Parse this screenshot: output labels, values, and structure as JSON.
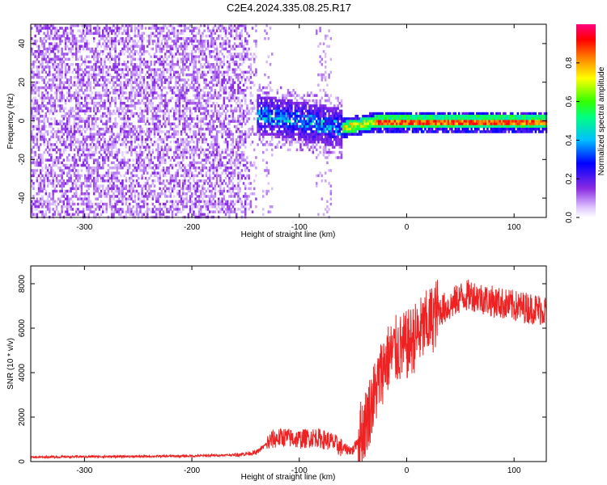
{
  "title": "C2E4.2024.335.08.25.R17",
  "colors": {
    "snr_line": "#ee2222",
    "spectrogram_low": "#8a2be2",
    "axis": "#000000"
  },
  "chart_data": [
    {
      "type": "heatmap",
      "xlabel": "Height of straight line (km)",
      "ylabel": "Frequency (Hz)",
      "xlim": [
        -350,
        130
      ],
      "ylim": [
        -50,
        50
      ],
      "xticks": [
        -300,
        -200,
        -100,
        0,
        100
      ],
      "yticks": [
        -40,
        -20,
        0,
        20,
        40
      ],
      "colorbar": {
        "label": "Normalized spectral amplitude",
        "range": [
          0.0,
          1.0
        ],
        "ticks": [
          0.0,
          0.2,
          0.4,
          0.6,
          0.8
        ],
        "colormap": "rainbow"
      },
      "features": [
        {
          "x_range": [
            -350,
            -140
          ],
          "freq_range": [
            -50,
            50
          ],
          "level": "noise, ~0.0-0.1"
        },
        {
          "x_range": [
            -150,
            -60
          ],
          "freq_center": 3,
          "freq_spread": 15,
          "level": "~0.1-0.4"
        },
        {
          "x_range": [
            -60,
            130
          ],
          "freq_center": 0,
          "freq_spread": 4,
          "level": "peak ~0.8-1.0"
        }
      ]
    },
    {
      "type": "line",
      "xlabel": "Height of straight line (km)",
      "ylabel": "SNR (10 * v/v)",
      "xlim": [
        -350,
        130
      ],
      "ylim": [
        0,
        8800
      ],
      "xticks": [
        -300,
        -200,
        -100,
        0,
        100
      ],
      "yticks": [
        0,
        2000,
        4000,
        6000,
        8000
      ],
      "series": [
        {
          "x": [
            -350,
            -300,
            -250,
            -200,
            -160,
            -140,
            -125,
            -115,
            -100,
            -85,
            -70,
            -60,
            -50,
            -40,
            -30,
            -20,
            -10,
            0,
            10,
            20,
            30,
            40,
            50,
            60,
            80,
            100,
            130
          ],
          "values": [
            200,
            220,
            230,
            250,
            300,
            400,
            1000,
            1100,
            1000,
            1100,
            900,
            600,
            500,
            1500,
            3000,
            4500,
            5000,
            5200,
            5700,
            6200,
            6800,
            7000,
            7400,
            7500,
            7200,
            7000,
            6800
          ]
        }
      ]
    }
  ]
}
